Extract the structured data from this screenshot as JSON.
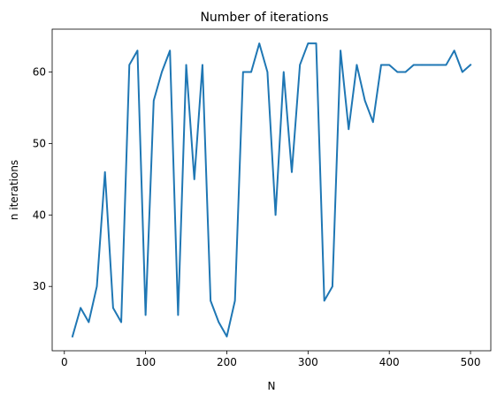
{
  "chart_data": {
    "type": "line",
    "title": "Number of iterations",
    "xlabel": "N",
    "ylabel": "n iterations",
    "xlim": [
      -15,
      525
    ],
    "ylim": [
      21.0,
      66.0
    ],
    "xticks": [
      0,
      100,
      200,
      300,
      400,
      500
    ],
    "yticks": [
      30,
      40,
      50,
      60
    ],
    "grid": false,
    "series": [
      {
        "color": "#1f77b4",
        "x": [
          10,
          20,
          30,
          40,
          50,
          60,
          70,
          80,
          90,
          100,
          110,
          120,
          130,
          140,
          150,
          160,
          170,
          180,
          190,
          200,
          210,
          220,
          230,
          240,
          250,
          260,
          270,
          280,
          290,
          300,
          310,
          320,
          330,
          340,
          350,
          360,
          370,
          380,
          390,
          400,
          410,
          420,
          430,
          440,
          450,
          460,
          470,
          480,
          490,
          500
        ],
        "y": [
          23,
          27,
          25,
          30,
          46,
          27,
          25,
          61,
          63,
          26,
          56,
          60,
          63,
          26,
          61,
          45,
          61,
          28,
          25,
          23,
          28,
          60,
          60,
          64,
          60,
          40,
          60,
          46,
          61,
          64,
          64,
          28,
          30,
          63,
          52,
          61,
          56,
          53,
          61,
          61,
          60,
          60,
          61,
          61,
          61,
          61,
          61,
          63,
          60,
          61
        ]
      }
    ]
  }
}
